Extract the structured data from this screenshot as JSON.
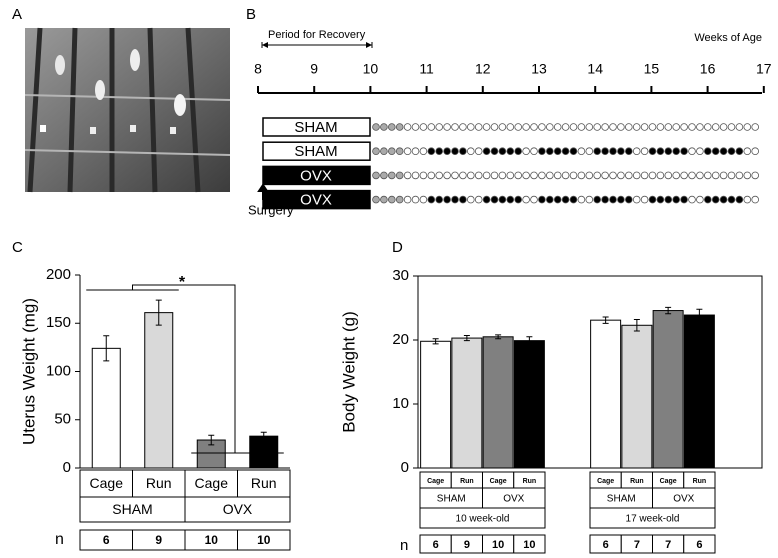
{
  "panels": {
    "a": "A",
    "b": "B"
  },
  "timeline": {
    "recovery_label": "Period for Recovery",
    "axis_label": "Weeks of Age",
    "ticks": [
      8,
      9,
      10,
      11,
      12,
      13,
      14,
      15,
      16,
      17
    ],
    "groups": [
      "SHAM",
      "SHAM",
      "OVX",
      "OVX"
    ],
    "surgery": "Surgery"
  },
  "chart_data": [
    {
      "type": "bar",
      "panel": "C",
      "y_label": "Uterus Weight (mg)",
      "ylim": [
        0,
        200
      ],
      "yticks": [
        0,
        50,
        100,
        150,
        200
      ],
      "categories": [
        "Cage",
        "Run",
        "Cage",
        "Run"
      ],
      "groups": [
        "SHAM",
        "OVX"
      ],
      "values": [
        124,
        161,
        29,
        33
      ],
      "errors": [
        13,
        13,
        5,
        4
      ],
      "colors": [
        "#ffffff",
        "#d9d9d9",
        "#808080",
        "#000000"
      ],
      "n_label": "n",
      "n": [
        6,
        9,
        10,
        10
      ],
      "annotation": "*"
    },
    {
      "type": "grouped_bar",
      "panel": "D",
      "y_label": "Body Weight (g)",
      "ylim": [
        0,
        30
      ],
      "yticks": [
        0,
        10,
        20,
        30
      ],
      "colors": [
        "#ffffff",
        "#d9d9d9",
        "#808080",
        "#000000"
      ],
      "n_label": "n",
      "sets": [
        {
          "name": "10 week-old",
          "categories": [
            "Cage",
            "Run",
            "Cage",
            "Run"
          ],
          "groups": [
            "SHAM",
            "OVX"
          ],
          "values": [
            19.8,
            20.3,
            20.5,
            19.9
          ],
          "errors": [
            0.4,
            0.4,
            0.3,
            0.6
          ],
          "n": [
            6,
            9,
            10,
            10
          ]
        },
        {
          "name": "17 week-old",
          "categories": [
            "Cage",
            "Run",
            "Cage",
            "Run"
          ],
          "groups": [
            "SHAM",
            "OVX"
          ],
          "values": [
            23.1,
            22.3,
            24.6,
            23.9
          ],
          "errors": [
            0.5,
            0.9,
            0.5,
            0.9
          ],
          "n": [
            6,
            7,
            7,
            6
          ]
        }
      ]
    }
  ]
}
